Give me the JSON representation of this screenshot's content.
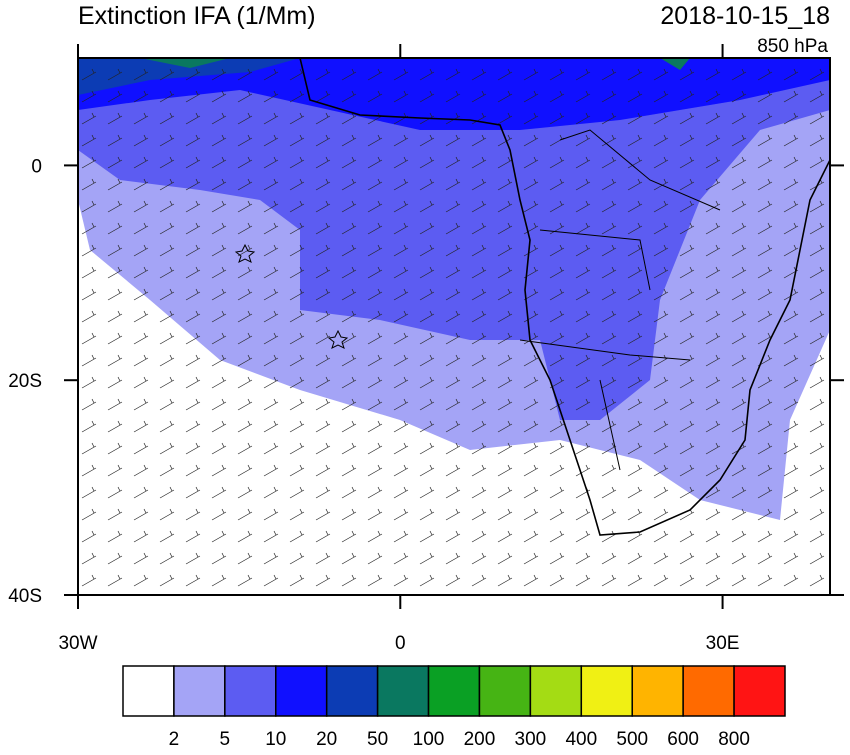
{
  "map": {
    "title": "Extinction IFA (1/Mm)",
    "date": "2018-10-15_18",
    "level": "850 hPa",
    "xlim": [
      -30,
      40
    ],
    "ylim": [
      -40,
      10
    ],
    "yticks": [
      {
        "value": 0,
        "label": "0"
      },
      {
        "value": -20,
        "label": "20S"
      },
      {
        "value": -40,
        "label": "40S"
      }
    ],
    "xticks": [
      {
        "value": -30,
        "label": "30W"
      },
      {
        "value": 0,
        "label": "0"
      },
      {
        "value": 30,
        "label": "30E"
      }
    ],
    "colorbar": {
      "levels": [
        2,
        5,
        10,
        20,
        50,
        100,
        200,
        300,
        400,
        500,
        600,
        800
      ],
      "colors": [
        "#ffffff",
        "#a4a4f6",
        "#5c5cf2",
        "#1010ff",
        "#0c3cb4",
        "#0a7860",
        "#0aa024",
        "#46b414",
        "#a4dc14",
        "#f0f014",
        "#ffb400",
        "#ff6a00",
        "#ff1414"
      ]
    }
  }
}
